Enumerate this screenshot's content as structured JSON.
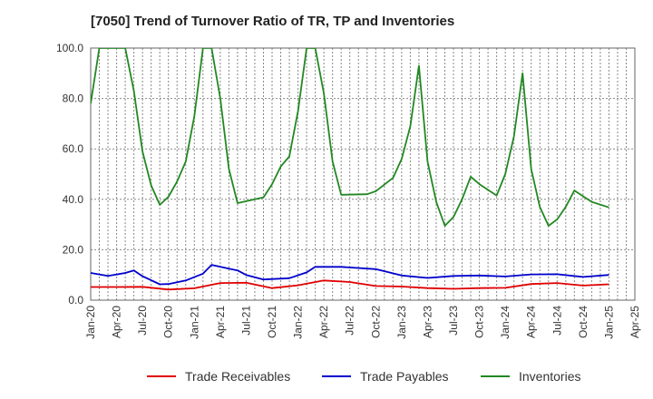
{
  "chart_data": {
    "type": "line",
    "title": "[7050]  Trend of Turnover Ratio of TR, TP and Inventories",
    "xlabel": "",
    "ylabel": "",
    "ylim": [
      0,
      100
    ],
    "y_ticks": [
      "0.0",
      "20.0",
      "40.0",
      "60.0",
      "80.0",
      "100.0"
    ],
    "x_tick_labels": [
      "Jan-20",
      "Apr-20",
      "Jul-20",
      "Oct-20",
      "Jan-21",
      "Apr-21",
      "Jul-21",
      "Oct-21",
      "Jan-22",
      "Apr-22",
      "Jul-22",
      "Oct-22",
      "Jan-23",
      "Apr-23",
      "Jul-23",
      "Oct-23",
      "Jan-24",
      "Apr-24",
      "Jul-24",
      "Oct-24",
      "Jan-25",
      "Apr-25"
    ],
    "x_range_months": [
      0,
      63
    ],
    "grid": true,
    "legend_position": "bottom",
    "series": [
      {
        "name": "Trade Receivables",
        "color": "#e00000",
        "points": [
          [
            0,
            5.2
          ],
          [
            3,
            5.2
          ],
          [
            6,
            5.3
          ],
          [
            9,
            4.2
          ],
          [
            12,
            4.7
          ],
          [
            15,
            6.8
          ],
          [
            18,
            6.9
          ],
          [
            21,
            4.8
          ],
          [
            24,
            5.9
          ],
          [
            27,
            7.8
          ],
          [
            30,
            7.2
          ],
          [
            33,
            5.6
          ],
          [
            36,
            5.4
          ],
          [
            39,
            4.8
          ],
          [
            42,
            4.5
          ],
          [
            45,
            4.8
          ],
          [
            48,
            4.9
          ],
          [
            51,
            6.4
          ],
          [
            54,
            6.8
          ],
          [
            57,
            5.8
          ],
          [
            60,
            6.3
          ]
        ]
      },
      {
        "name": "Trade Payables",
        "color": "#0000cc",
        "points": [
          [
            0,
            10.8
          ],
          [
            2,
            9.6
          ],
          [
            4,
            10.8
          ],
          [
            5,
            11.8
          ],
          [
            6,
            9.5
          ],
          [
            8,
            6.3
          ],
          [
            9,
            6.4
          ],
          [
            11,
            7.8
          ],
          [
            13,
            10.5
          ],
          [
            14,
            14
          ],
          [
            16,
            12.5
          ],
          [
            17,
            11.8
          ],
          [
            18,
            10
          ],
          [
            20,
            8.2
          ],
          [
            23,
            8.7
          ],
          [
            25,
            11
          ],
          [
            26,
            13.2
          ],
          [
            29,
            13.2
          ],
          [
            33,
            12.3
          ],
          [
            36,
            9.8
          ],
          [
            39,
            8.8
          ],
          [
            42,
            9.6
          ],
          [
            45,
            9.8
          ],
          [
            48,
            9.4
          ],
          [
            51,
            10.2
          ],
          [
            54,
            10.3
          ],
          [
            57,
            9.2
          ],
          [
            60,
            10
          ]
        ]
      },
      {
        "name": "Inventories",
        "color": "#228822",
        "points": [
          [
            0,
            78
          ],
          [
            1,
            100
          ],
          [
            4,
            100
          ],
          [
            5,
            83
          ],
          [
            6,
            59
          ],
          [
            7,
            45.5
          ],
          [
            8,
            37.8
          ],
          [
            9,
            41
          ],
          [
            10,
            47
          ],
          [
            11,
            55
          ],
          [
            12,
            73
          ],
          [
            13,
            100
          ],
          [
            14,
            100
          ],
          [
            15,
            80
          ],
          [
            16,
            52
          ],
          [
            17,
            38.5
          ],
          [
            20,
            40.8
          ],
          [
            21,
            46
          ],
          [
            22,
            53
          ],
          [
            23,
            57
          ],
          [
            24,
            75
          ],
          [
            25,
            100
          ],
          [
            26,
            100
          ],
          [
            27,
            82
          ],
          [
            28,
            55
          ],
          [
            29,
            41.8
          ],
          [
            32,
            42
          ],
          [
            33,
            43.2
          ],
          [
            35,
            48.5
          ],
          [
            36,
            56
          ],
          [
            37,
            69
          ],
          [
            38,
            93
          ],
          [
            39,
            55
          ],
          [
            40,
            39
          ],
          [
            41,
            29.5
          ],
          [
            42,
            33
          ],
          [
            43,
            40
          ],
          [
            44,
            49
          ],
          [
            45,
            46
          ],
          [
            47,
            41.5
          ],
          [
            48,
            50
          ],
          [
            49,
            65
          ],
          [
            50,
            90
          ],
          [
            51,
            52
          ],
          [
            52,
            37
          ],
          [
            53,
            29.5
          ],
          [
            54,
            32
          ],
          [
            55,
            37
          ],
          [
            56,
            43.5
          ],
          [
            58,
            39
          ],
          [
            60,
            36.8
          ]
        ]
      }
    ]
  }
}
